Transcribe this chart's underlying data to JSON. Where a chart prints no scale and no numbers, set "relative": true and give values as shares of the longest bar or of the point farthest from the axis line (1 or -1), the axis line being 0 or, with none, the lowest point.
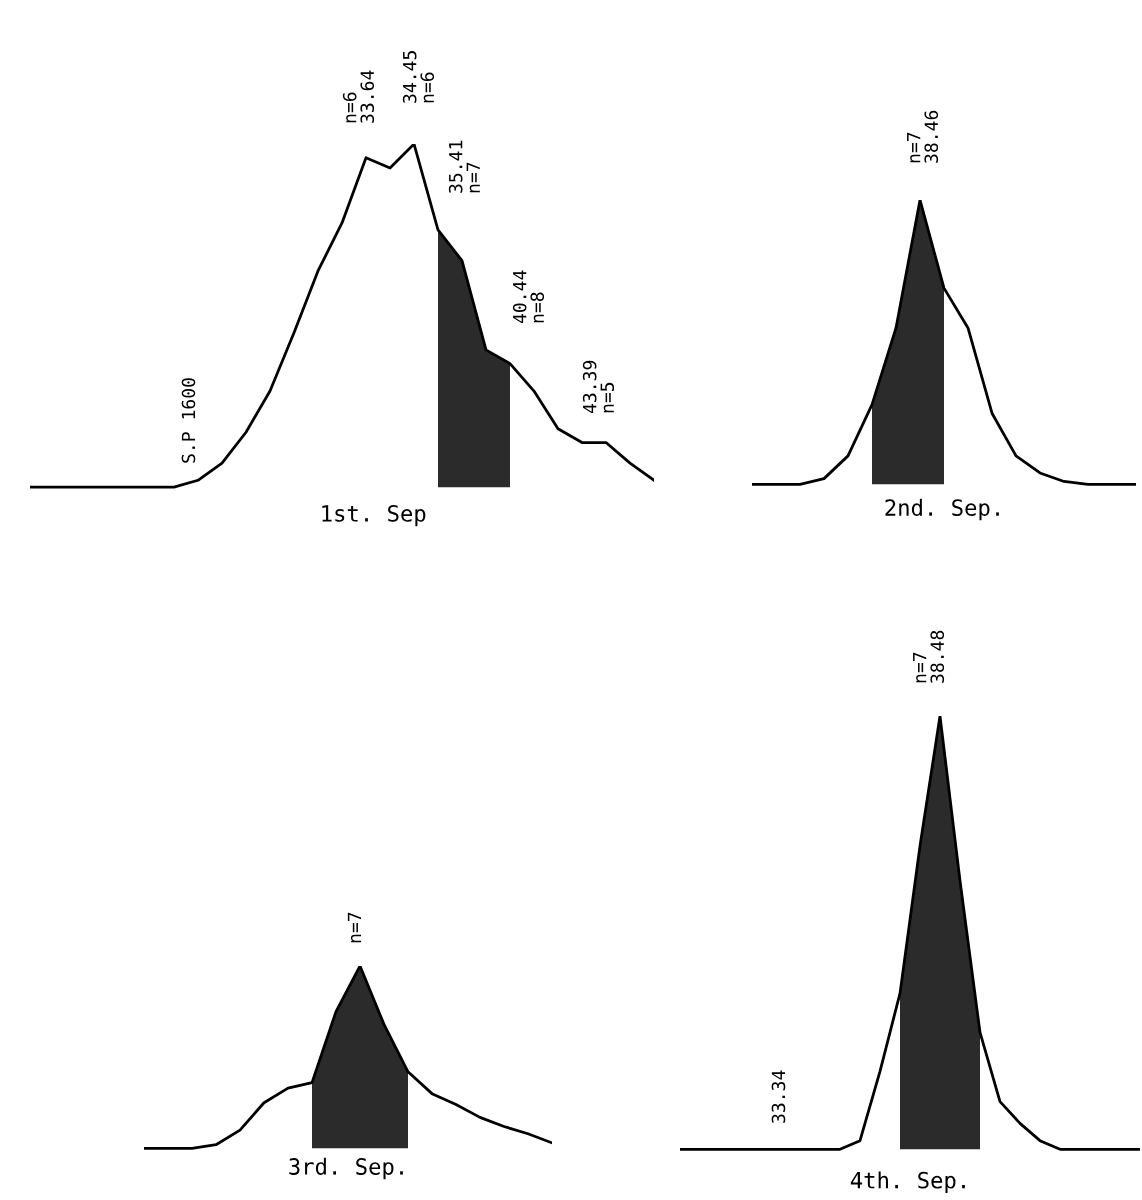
{
  "chart_data": [
    {
      "type": "line",
      "relative": true,
      "xlabel": "1st. Sep",
      "categories": [
        null,
        null,
        null,
        null,
        null,
        null,
        null,
        null,
        null,
        null,
        null,
        null,
        null,
        null,
        null,
        null,
        null,
        null,
        null,
        null,
        null,
        null,
        null,
        null,
        null,
        null,
        null
      ],
      "series": [
        {
          "color": "#000000",
          "values": [
            0,
            0,
            0,
            0,
            0,
            0,
            0,
            0.02,
            0.07,
            0.16,
            0.28,
            0.45,
            0.63,
            0.77,
            0.96,
            0.93,
            1.0,
            0.75,
            0.66,
            0.4,
            0.36,
            0.28,
            0.17,
            0.13,
            0.13,
            0.07,
            0.02
          ]
        },
        {
          "type": "area",
          "color": "#2b2b2b",
          "values": [
            null,
            null,
            null,
            null,
            null,
            null,
            null,
            null,
            null,
            null,
            null,
            null,
            null,
            null,
            null,
            null,
            null,
            0.75,
            0.66,
            0.4,
            0.36,
            null,
            null,
            null,
            null,
            null,
            null
          ]
        }
      ],
      "annotations": [
        "S.P 1600",
        "n=6\n33.64",
        "34.45\nn=6",
        "35.41\nn=7",
        "40.44\nn=8",
        "43.39\nn=5"
      ]
    },
    {
      "type": "line",
      "relative": true,
      "xlabel": "2nd. Sep.",
      "categories": [
        null,
        null,
        null,
        null,
        null,
        null,
        null,
        null,
        null,
        null,
        null,
        null,
        null,
        null,
        null,
        null,
        null
      ],
      "series": [
        {
          "color": "#000000",
          "values": [
            0,
            0,
            0,
            0.02,
            0.1,
            0.28,
            0.55,
            1.0,
            0.69,
            0.55,
            0.25,
            0.1,
            0.04,
            0.01,
            0,
            0,
            0
          ]
        },
        {
          "type": "area",
          "color": "#2b2b2b",
          "values": [
            null,
            null,
            null,
            null,
            null,
            0.28,
            0.55,
            1.0,
            0.69,
            null,
            null,
            null,
            null,
            null,
            null,
            null,
            null
          ]
        }
      ],
      "annotations": [
        "n=7\n38.46"
      ]
    },
    {
      "type": "line",
      "relative": true,
      "xlabel": "3rd. Sep.",
      "categories": [
        null,
        null,
        null,
        null,
        null,
        null,
        null,
        null,
        null,
        null,
        null,
        null,
        null,
        null,
        null,
        null,
        null,
        null
      ],
      "series": [
        {
          "color": "#000000",
          "values": [
            0,
            0,
            0,
            0.02,
            0.1,
            0.25,
            0.33,
            0.36,
            0.75,
            1.0,
            0.68,
            0.42,
            0.3,
            0.24,
            0.17,
            0.12,
            0.08,
            0.03
          ]
        },
        {
          "type": "area",
          "color": "#2b2b2b",
          "values": [
            null,
            null,
            null,
            null,
            null,
            null,
            null,
            0.36,
            0.75,
            1.0,
            0.68,
            0.42,
            null,
            null,
            null,
            null,
            null,
            null
          ]
        }
      ],
      "annotations": [
        "n=7"
      ]
    },
    {
      "type": "line",
      "relative": true,
      "xlabel": "4th. Sep.",
      "categories": [
        null,
        null,
        null,
        null,
        null,
        null,
        null,
        null,
        null,
        null,
        null,
        null,
        null,
        null,
        null,
        null,
        null,
        null,
        null,
        null,
        null,
        null,
        null,
        null
      ],
      "series": [
        {
          "color": "#000000",
          "values": [
            0,
            0,
            0,
            0,
            0,
            0,
            0,
            0,
            0,
            0.02,
            0.18,
            0.36,
            0.7,
            1.0,
            0.62,
            0.27,
            0.11,
            0.06,
            0.02,
            0,
            0,
            0,
            0,
            0
          ]
        },
        {
          "type": "area",
          "color": "#2b2b2b",
          "values": [
            null,
            null,
            null,
            null,
            null,
            null,
            null,
            null,
            null,
            null,
            null,
            0.36,
            0.7,
            1.0,
            0.62,
            0.27,
            null,
            null,
            null,
            null,
            null,
            null,
            null,
            null
          ]
        }
      ],
      "annotations": [
        "n=7\n38.48",
        "33.34"
      ]
    }
  ]
}
